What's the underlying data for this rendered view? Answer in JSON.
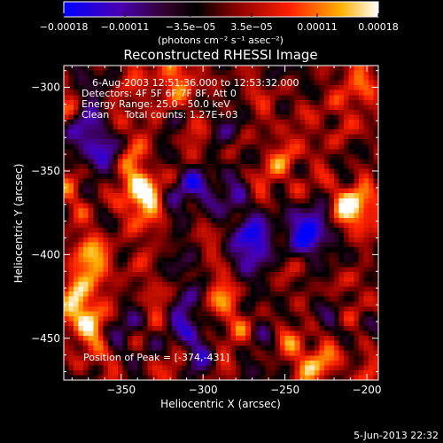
{
  "chart_data": {
    "type": "heatmap",
    "title": "Reconstructed RHESSI Image",
    "xlabel": "Heliocentric X (arcsec)",
    "ylabel": "Heliocentric Y (arcsec)",
    "xlim": [
      -385,
      -193
    ],
    "ylim": [
      -475,
      -287
    ],
    "x_ticks": [
      -350,
      -300,
      -250,
      -200
    ],
    "y_ticks": [
      -300,
      -350,
      -400,
      -450
    ],
    "x_tick_labels": [
      "−350",
      "−300",
      "−250",
      "−200"
    ],
    "y_tick_labels": [
      "−300",
      "−350",
      "−400",
      "−450"
    ],
    "colorbar": {
      "vmin": -0.00018,
      "vmax": 0.00018,
      "ticks": [
        -0.00018,
        -0.00011,
        -3.5e-05,
        3.5e-05,
        0.00011,
        0.00018
      ],
      "tick_labels": [
        "−0.00018",
        "−0.00011",
        "−3.5e−05",
        "3.5e−05",
        "0.00011",
        "0.00018"
      ],
      "unit_label": "(photons cm⁻² s⁻¹ asec⁻²)",
      "colormap": [
        "#0000ff",
        "#5a00a8",
        "#2a0030",
        "#000000",
        "#8a0000",
        "#ff0000",
        "#ff8c00",
        "#ffffff"
      ]
    },
    "annotations": [
      "6-Aug-2003 12:51:36.000 to 12:53:32.000",
      "Detectors: 4F 5F 6F 7F 8F, Att 0",
      "Energy Range: 25.0 - 50.0 keV",
      "Clean     Total counts: 1.27E+03"
    ],
    "peak_label": "Position of Peak = [-374,-431]",
    "peak_position": [
      -374,
      -431
    ],
    "hot_spots": [
      {
        "x": -378,
        "y": -435,
        "value": 0.00018
      },
      {
        "x": -337,
        "y": -360,
        "value": 0.00016
      },
      {
        "x": -206,
        "y": -372,
        "value": 0.00015
      },
      {
        "x": -362,
        "y": -400,
        "value": 0.00012
      },
      {
        "x": -325,
        "y": -300,
        "value": 0.00011
      },
      {
        "x": -245,
        "y": -340,
        "value": 9e-05
      },
      {
        "x": -230,
        "y": -465,
        "value": 0.0001
      },
      {
        "x": -285,
        "y": -425,
        "value": 8e-05
      },
      {
        "x": -205,
        "y": -300,
        "value": 0.0001
      }
    ],
    "cold_spots": [
      {
        "x": -270,
        "y": -395,
        "value": -0.00015
      },
      {
        "x": -235,
        "y": -385,
        "value": -0.00014
      },
      {
        "x": -370,
        "y": -330,
        "value": -0.00011
      },
      {
        "x": -300,
        "y": -360,
        "value": -0.00012
      },
      {
        "x": -310,
        "y": -440,
        "value": -9e-05
      }
    ]
  },
  "footer": {
    "date": "5-Jun-2013 22:32"
  }
}
